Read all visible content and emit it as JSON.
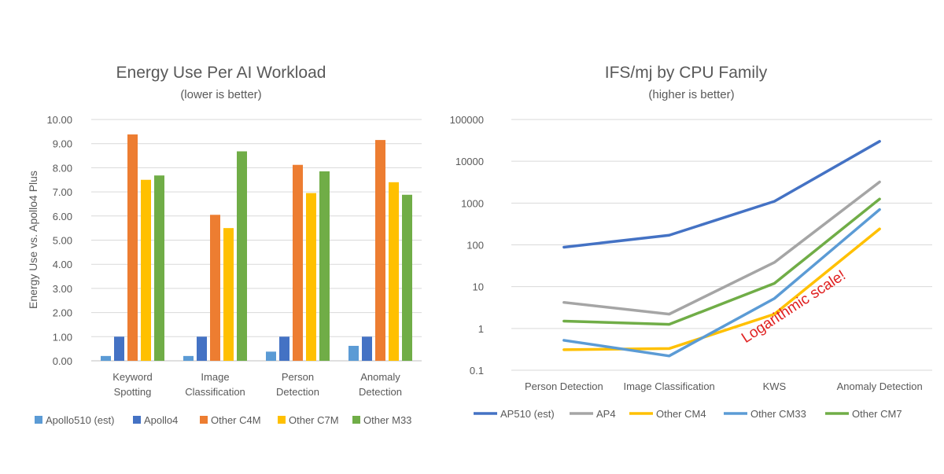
{
  "chart_data": [
    {
      "type": "bar",
      "title": "Energy Use Per AI Workload",
      "subtitle": "(lower is better)",
      "ylabel": "Energy Use vs. Apollo4 Plus",
      "xlabel": "",
      "ylim": [
        0,
        10
      ],
      "yticks": [
        "0.00",
        "1.00",
        "2.00",
        "3.00",
        "4.00",
        "5.00",
        "6.00",
        "7.00",
        "8.00",
        "9.00",
        "10.00"
      ],
      "grid": true,
      "legend_position": "bottom",
      "categories": [
        [
          "Keyword",
          "Spotting"
        ],
        [
          "Image",
          "Classification"
        ],
        [
          "Person",
          "Detection"
        ],
        [
          "Anomaly",
          "Detection"
        ]
      ],
      "series": [
        {
          "name": "Apollo510 (est)",
          "color": "#5b9bd5",
          "values": [
            0.2,
            0.2,
            0.38,
            0.62
          ]
        },
        {
          "name": "Apollo4",
          "color": "#4472c4",
          "values": [
            1.0,
            1.0,
            1.0,
            1.0
          ]
        },
        {
          "name": "Other C4M",
          "color": "#ed7d31",
          "values": [
            9.38,
            6.05,
            8.12,
            9.15
          ]
        },
        {
          "name": "Other C7M",
          "color": "#ffc000",
          "values": [
            7.5,
            5.5,
            6.95,
            7.4
          ]
        },
        {
          "name": "Other M33",
          "color": "#70ad47",
          "values": [
            7.68,
            8.68,
            7.85,
            6.88
          ]
        }
      ]
    },
    {
      "type": "line",
      "title": "IFS/mj by CPU Family",
      "subtitle": "(higher is better)",
      "xlabel": "",
      "ylabel": "",
      "y_scale": "log",
      "ylim": [
        0.1,
        100000
      ],
      "yticks": [
        "0.1",
        "1",
        "10",
        "100",
        "1000",
        "10000",
        "100000"
      ],
      "grid": true,
      "legend_position": "bottom",
      "annotation": "Logarithmic scale!",
      "annotation_color": "#e02020",
      "categories": [
        "Person Detection",
        "Image Classification",
        "KWS",
        "Anomaly Detection"
      ],
      "series": [
        {
          "name": "AP510 (est)",
          "color": "#4472c4",
          "values": [
            88,
            170,
            1100,
            30000
          ]
        },
        {
          "name": "AP4",
          "color": "#a5a5a5",
          "values": [
            4.2,
            2.2,
            38,
            3200
          ]
        },
        {
          "name": "Other CM4",
          "color": "#ffc000",
          "values": [
            0.31,
            0.33,
            2.2,
            240
          ]
        },
        {
          "name": "Other CM33",
          "color": "#5b9bd5",
          "values": [
            0.52,
            0.22,
            5.2,
            700
          ]
        },
        {
          "name": "Other CM7",
          "color": "#70ad47",
          "values": [
            1.5,
            1.25,
            12,
            1250
          ]
        }
      ]
    }
  ]
}
